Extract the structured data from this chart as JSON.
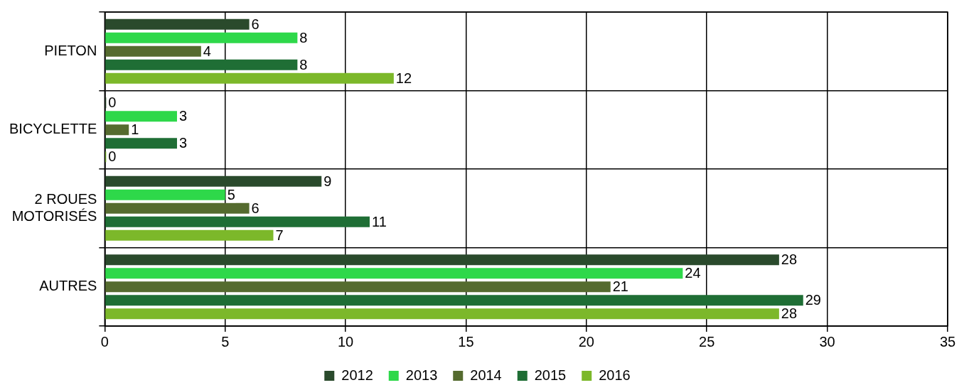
{
  "chart_data": {
    "type": "bar",
    "orientation": "horizontal",
    "categories": [
      "PIETON",
      "BICYCLETTE",
      "2 ROUES\nMOTORISÉS",
      "AUTRES"
    ],
    "series": [
      {
        "name": "2012",
        "color": "#2a4a2c",
        "values": [
          6,
          0,
          9,
          28
        ]
      },
      {
        "name": "2013",
        "color": "#2ed84a",
        "values": [
          8,
          3,
          5,
          24
        ]
      },
      {
        "name": "2014",
        "color": "#556b2f",
        "values": [
          4,
          1,
          6,
          21
        ]
      },
      {
        "name": "2015",
        "color": "#1f6e35",
        "values": [
          8,
          3,
          11,
          29
        ]
      },
      {
        "name": "2016",
        "color": "#7cb82a",
        "values": [
          12,
          0,
          7,
          28
        ]
      }
    ],
    "xlim": [
      0,
      35
    ],
    "xticks": [
      0,
      5,
      10,
      15,
      20,
      25,
      30,
      35
    ],
    "grid": true,
    "legend": "bottom",
    "data_labels": true
  }
}
